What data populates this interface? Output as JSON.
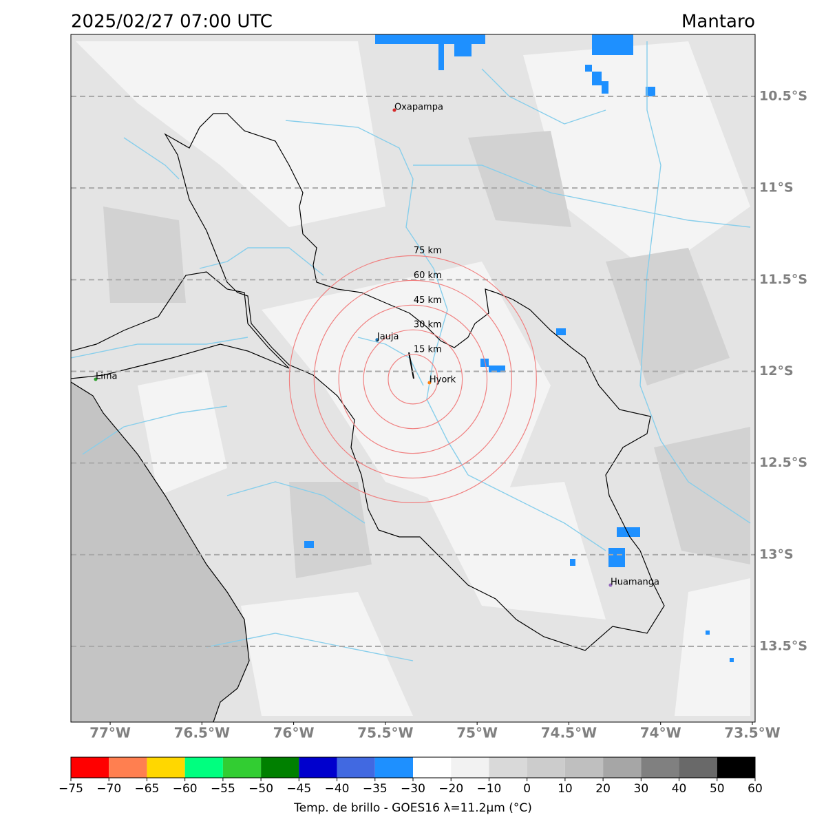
{
  "chart_data": {
    "type": "map",
    "title": "2025/02/27 07:00 UTC",
    "region": "Mantaro",
    "xlim": [
      -77.214,
      -73.485
    ],
    "ylim": [
      -13.913,
      -10.162
    ],
    "xticks": [
      {
        "value": -77,
        "label": "77°W"
      },
      {
        "value": -76.5,
        "label": "76.5°W"
      },
      {
        "value": -76,
        "label": "76°W"
      },
      {
        "value": -75.5,
        "label": "75.5°W"
      },
      {
        "value": -75,
        "label": "75°W"
      },
      {
        "value": -74.5,
        "label": "74.5°W"
      },
      {
        "value": -74,
        "label": "74°W"
      },
      {
        "value": -73.5,
        "label": "73.5°W"
      }
    ],
    "yticks": [
      {
        "value": -10.5,
        "label": "10.5°S"
      },
      {
        "value": -11,
        "label": "11°S"
      },
      {
        "value": -11.5,
        "label": "11.5°S"
      },
      {
        "value": -12,
        "label": "12°S"
      },
      {
        "value": -12.5,
        "label": "12.5°S"
      },
      {
        "value": -13,
        "label": "13°S"
      },
      {
        "value": -13.5,
        "label": "13.5°S"
      }
    ],
    "grid": true,
    "cities": [
      {
        "name": "Oxapampa",
        "lon": -75.451,
        "lat": -10.575,
        "color": "#d62728"
      },
      {
        "name": "Jauja",
        "lon": -75.545,
        "lat": -11.828,
        "color": "#1f77b4"
      },
      {
        "name": "Lima",
        "lon": -77.079,
        "lat": -12.043,
        "color": "#2ca02c"
      },
      {
        "name": "Hyork",
        "lon": -75.26,
        "lat": -12.062,
        "color": "#ff7f0e"
      },
      {
        "name": "Huamanga",
        "lon": -74.273,
        "lat": -13.166,
        "color": "#9467bd"
      }
    ],
    "rings_center": [
      -75.35,
      -12.043
    ],
    "rings_color": "#f08080",
    "rings": [
      {
        "value": 15,
        "label": "15 km"
      },
      {
        "value": 30,
        "label": "30 km"
      },
      {
        "value": 45,
        "label": "45 km"
      },
      {
        "value": 60,
        "label": "60 km"
      },
      {
        "value": 75,
        "label": "75 km"
      }
    ],
    "colorbar": {
      "label": "Temp. de brillo - GOES16 λ=11.2μm (°C)",
      "ticks": [
        {
          "value": -75,
          "label": "−75"
        },
        {
          "value": -70,
          "label": "−70"
        },
        {
          "value": -65,
          "label": "−65"
        },
        {
          "value": -60,
          "label": "−60"
        },
        {
          "value": -55,
          "label": "−55"
        },
        {
          "value": -50,
          "label": "−50"
        },
        {
          "value": -45,
          "label": "−45"
        },
        {
          "value": -40,
          "label": "−40"
        },
        {
          "value": -35,
          "label": "−35"
        },
        {
          "value": -30,
          "label": "−30"
        },
        {
          "value": -20,
          "label": "−20"
        },
        {
          "value": -10,
          "label": "−10"
        },
        0,
        10,
        20,
        30,
        40,
        50,
        60
      ],
      "colors": [
        "#ff0000",
        "#ff7f50",
        "#ffd700",
        "#00ff7f",
        "#32cd32",
        "#008000",
        "#0000cd",
        "#4169e1",
        "#1e90ff",
        "#ffffff",
        "#f2f2f2",
        "#d9d9d9",
        "#cccccc",
        "#bfbfbf",
        "#a6a6a6",
        "#808080",
        "#696969",
        "#000000"
      ]
    }
  }
}
